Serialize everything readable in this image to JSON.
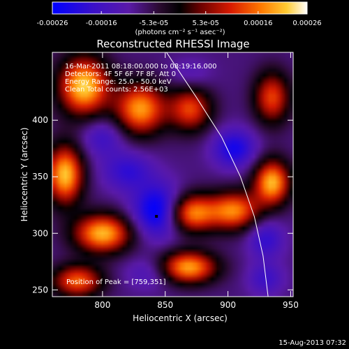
{
  "chart_data": {
    "type": "heatmap",
    "title": "Reconstructed RHESSI Image",
    "xlabel": "Heliocentric X (arcsec)",
    "ylabel": "Heliocentric Y (arcsec)",
    "xlim": [
      760,
      952
    ],
    "ylim": [
      244,
      460
    ],
    "x_ticks": [
      800,
      850,
      900,
      950
    ],
    "y_ticks": [
      250,
      300,
      350,
      400
    ],
    "colorbar": {
      "min": -0.00026,
      "max": 0.00026,
      "tick_values": [
        -0.00026,
        -0.00016,
        -5.3e-05,
        5.3e-05,
        0.00016,
        0.00026
      ],
      "tick_labels": [
        "-0.00026",
        "-0.00016",
        "-5.3e-05",
        "5.3e-05",
        "0.00016",
        "0.00026"
      ],
      "label": "(photons cm⁻² s⁻¹ asec⁻²)",
      "colormap": [
        "#0000ff",
        "#5a1aa8",
        "#2a0a30",
        "#000000",
        "#6a0000",
        "#d81a00",
        "#ff7a00",
        "#ffcc33",
        "#ffffff"
      ]
    },
    "annotations": [
      "16-Mar-2011 08:18:00.000 to 08:19:16.000",
      "Detectors: 4F 5F 6F 7F 8F, Att 0",
      "Energy Range: 25.0 - 50.0 keV",
      "Clean     Total counts: 2.56E+03"
    ],
    "peak_label": "Position of Peak = [759,351]",
    "marker": {
      "x": 843,
      "y": 315
    },
    "limb_curve": [
      [
        851,
        460
      ],
      [
        875,
        420
      ],
      [
        895,
        385
      ],
      [
        910,
        350
      ],
      [
        921,
        315
      ],
      [
        928,
        280
      ],
      [
        932,
        244
      ]
    ],
    "blobs": [
      {
        "x": 785,
        "y": 430,
        "value": 0.00026,
        "sx": 14,
        "sy": 18
      },
      {
        "x": 830,
        "y": 410,
        "value": 0.00022,
        "sx": 14,
        "sy": 16
      },
      {
        "x": 770,
        "y": 352,
        "value": 0.00025,
        "sx": 10,
        "sy": 18
      },
      {
        "x": 800,
        "y": 300,
        "value": 0.00024,
        "sx": 16,
        "sy": 12
      },
      {
        "x": 780,
        "y": 258,
        "value": 0.00018,
        "sx": 14,
        "sy": 10
      },
      {
        "x": 870,
        "y": 318,
        "value": 0.00022,
        "sx": 14,
        "sy": 12
      },
      {
        "x": 905,
        "y": 320,
        "value": 0.0002,
        "sx": 14,
        "sy": 12
      },
      {
        "x": 935,
        "y": 345,
        "value": 0.00024,
        "sx": 10,
        "sy": 14
      },
      {
        "x": 868,
        "y": 270,
        "value": 0.00023,
        "sx": 16,
        "sy": 10
      },
      {
        "x": 870,
        "y": 410,
        "value": 0.00016,
        "sx": 12,
        "sy": 14
      },
      {
        "x": 935,
        "y": 420,
        "value": 0.00016,
        "sx": 10,
        "sy": 16
      },
      {
        "x": 845,
        "y": 320,
        "value": -0.00026,
        "sx": 14,
        "sy": 16
      },
      {
        "x": 820,
        "y": 355,
        "value": -0.00016,
        "sx": 14,
        "sy": 12
      },
      {
        "x": 800,
        "y": 385,
        "value": -0.00014,
        "sx": 12,
        "sy": 12
      },
      {
        "x": 905,
        "y": 375,
        "value": -0.0002,
        "sx": 12,
        "sy": 12
      },
      {
        "x": 930,
        "y": 295,
        "value": -0.00016,
        "sx": 10,
        "sy": 12
      },
      {
        "x": 838,
        "y": 265,
        "value": -0.00012,
        "sx": 14,
        "sy": 10
      },
      {
        "x": 870,
        "y": 440,
        "value": -0.0001,
        "sx": 12,
        "sy": 10
      },
      {
        "x": 930,
        "y": 260,
        "value": -0.00014,
        "sx": 10,
        "sy": 10
      }
    ]
  },
  "footer": {
    "timestamp": "15-Aug-2013 07:32"
  }
}
